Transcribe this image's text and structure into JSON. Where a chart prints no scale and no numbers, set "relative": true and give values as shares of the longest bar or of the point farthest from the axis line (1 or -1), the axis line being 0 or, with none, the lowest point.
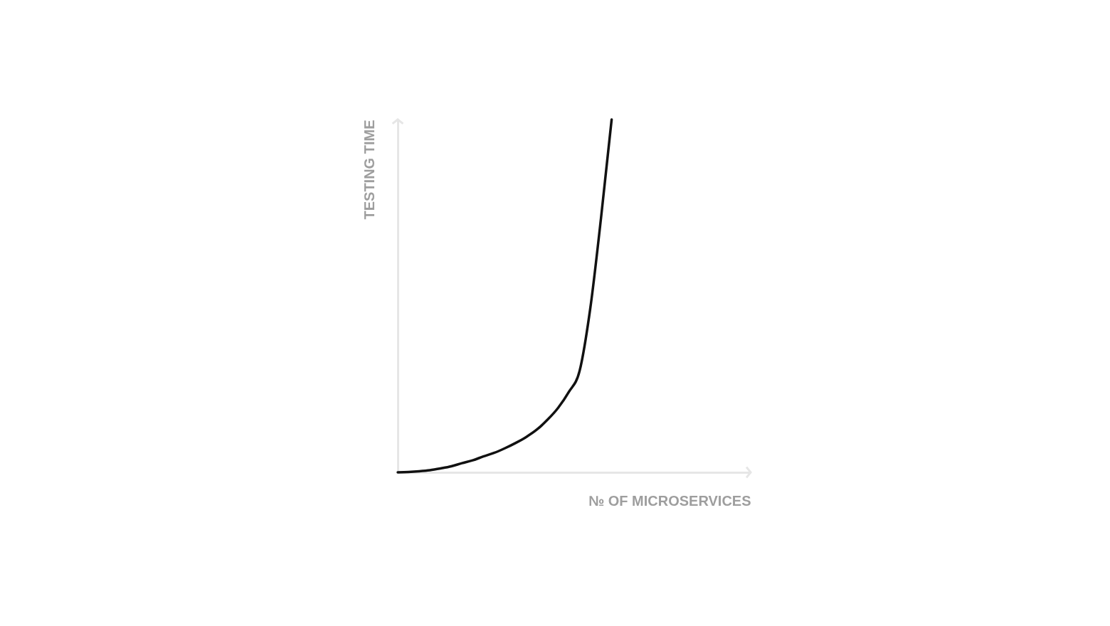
{
  "chart_data": {
    "type": "line",
    "relative": true,
    "xlabel": "№ OF MICROSERVICES",
    "ylabel": "TESTING TIME",
    "categories": [
      null,
      null,
      null,
      null,
      null,
      null,
      null,
      null,
      null,
      null,
      null,
      null,
      null,
      null,
      null,
      null,
      null,
      null,
      null,
      null,
      null,
      null,
      null,
      null,
      null,
      null,
      null,
      null,
      null,
      null,
      null,
      null,
      null,
      null
    ],
    "series": [
      {
        "color": "#111111",
        "values": [
          0,
          0.001,
          0.003,
          0.006,
          0.011,
          0.017,
          0.026,
          0.034,
          0.045,
          0.055,
          0.068,
          0.083,
          0.1,
          0.121,
          0.149,
          0.183,
          0.228,
          0.287,
          0.464,
          0.719,
          1,
          null,
          null,
          null,
          null,
          null,
          null,
          null,
          null,
          null,
          null,
          null,
          null,
          null
        ]
      }
    ],
    "tick_labels": false,
    "legend": false,
    "marker": "none",
    "line_style": "solid"
  }
}
